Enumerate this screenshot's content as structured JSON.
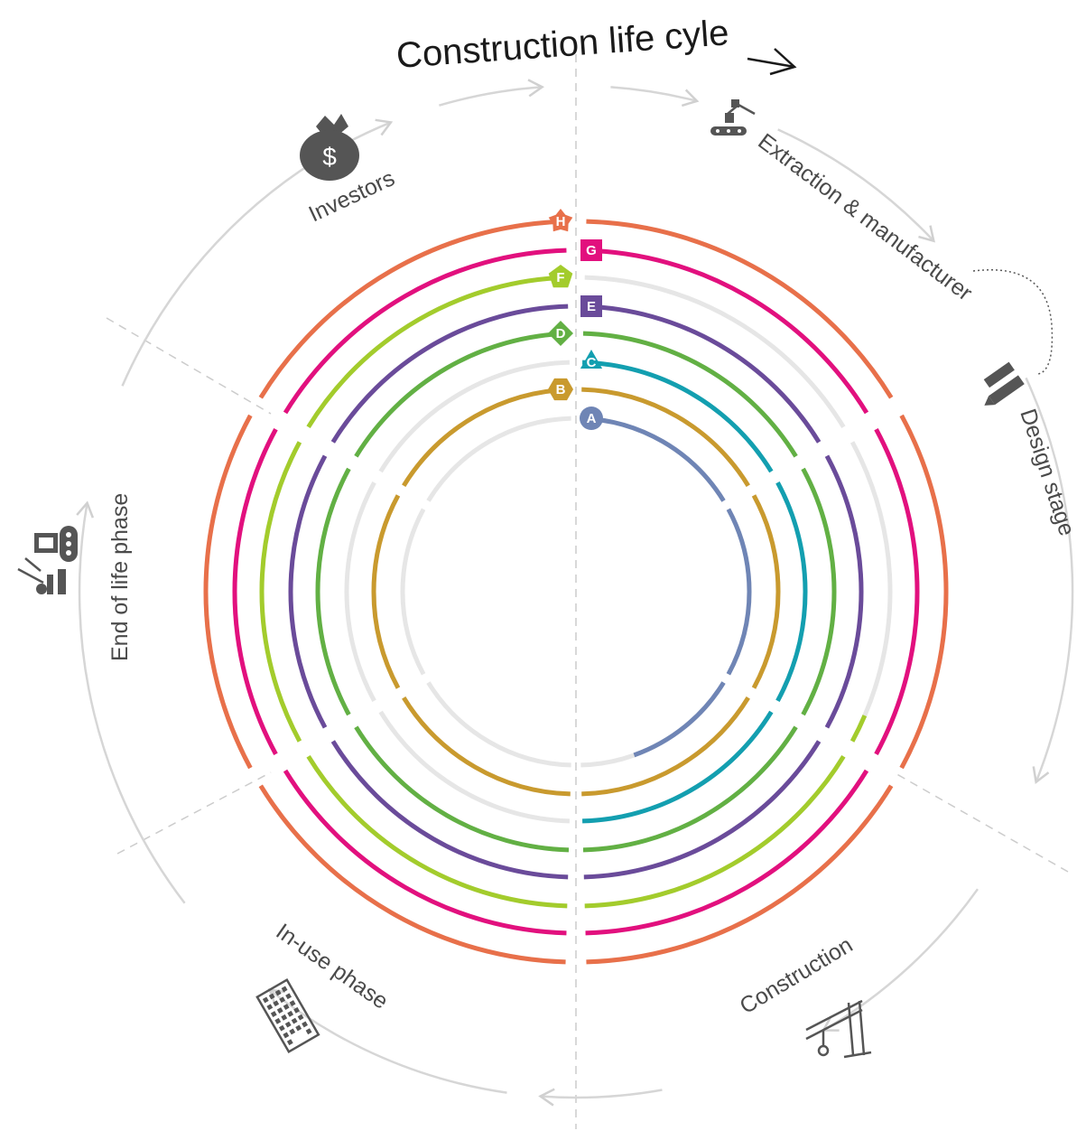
{
  "title": "Construction life cyle",
  "stages": [
    {
      "id": "extraction",
      "label": "Extraction & manufacturer",
      "icon": "conveyor-robot-icon"
    },
    {
      "id": "design",
      "label": "Design stage",
      "icon": "ruler-pencil-icon"
    },
    {
      "id": "construction",
      "label": "Construction",
      "icon": "crane-icon"
    },
    {
      "id": "in-use",
      "label": "In-use phase",
      "icon": "building-icon"
    },
    {
      "id": "end-of-life",
      "label": "End of life phase",
      "icon": "demolition-machinery-icon"
    },
    {
      "id": "investors",
      "label": "Investors",
      "icon": "money-bag-icon"
    }
  ],
  "money_symbol": "$",
  "rings": [
    {
      "label": "A",
      "color": "#6f85b5",
      "shape": "circle",
      "spans": [
        [
          0,
          0.45
        ]
      ]
    },
    {
      "label": "B",
      "color": "#c99a2e",
      "shape": "hexagon",
      "spans": [
        [
          0,
          1
        ]
      ]
    },
    {
      "label": "C",
      "color": "#139fb0",
      "shape": "triangle",
      "spans": [
        [
          0,
          0.5
        ]
      ]
    },
    {
      "label": "D",
      "color": "#62b044",
      "shape": "diamond",
      "spans": [
        [
          0,
          1
        ]
      ]
    },
    {
      "label": "E",
      "color": "#6a4b9a",
      "shape": "square",
      "spans": [
        [
          0,
          1
        ]
      ]
    },
    {
      "label": "F",
      "color": "#a3cc2c",
      "shape": "pentagon",
      "spans": [
        [
          0.31,
          1
        ]
      ]
    },
    {
      "label": "G",
      "color": "#e2107e",
      "shape": "tag",
      "spans": [
        [
          0,
          1
        ]
      ]
    },
    {
      "label": "H",
      "color": "#e8704a",
      "shape": "star",
      "spans": [
        [
          0,
          1
        ]
      ]
    }
  ],
  "colors": {
    "guide": "#d6d6d6",
    "track": "#e6e6e6",
    "text": "#4a4a4a",
    "icon": "#555555"
  }
}
